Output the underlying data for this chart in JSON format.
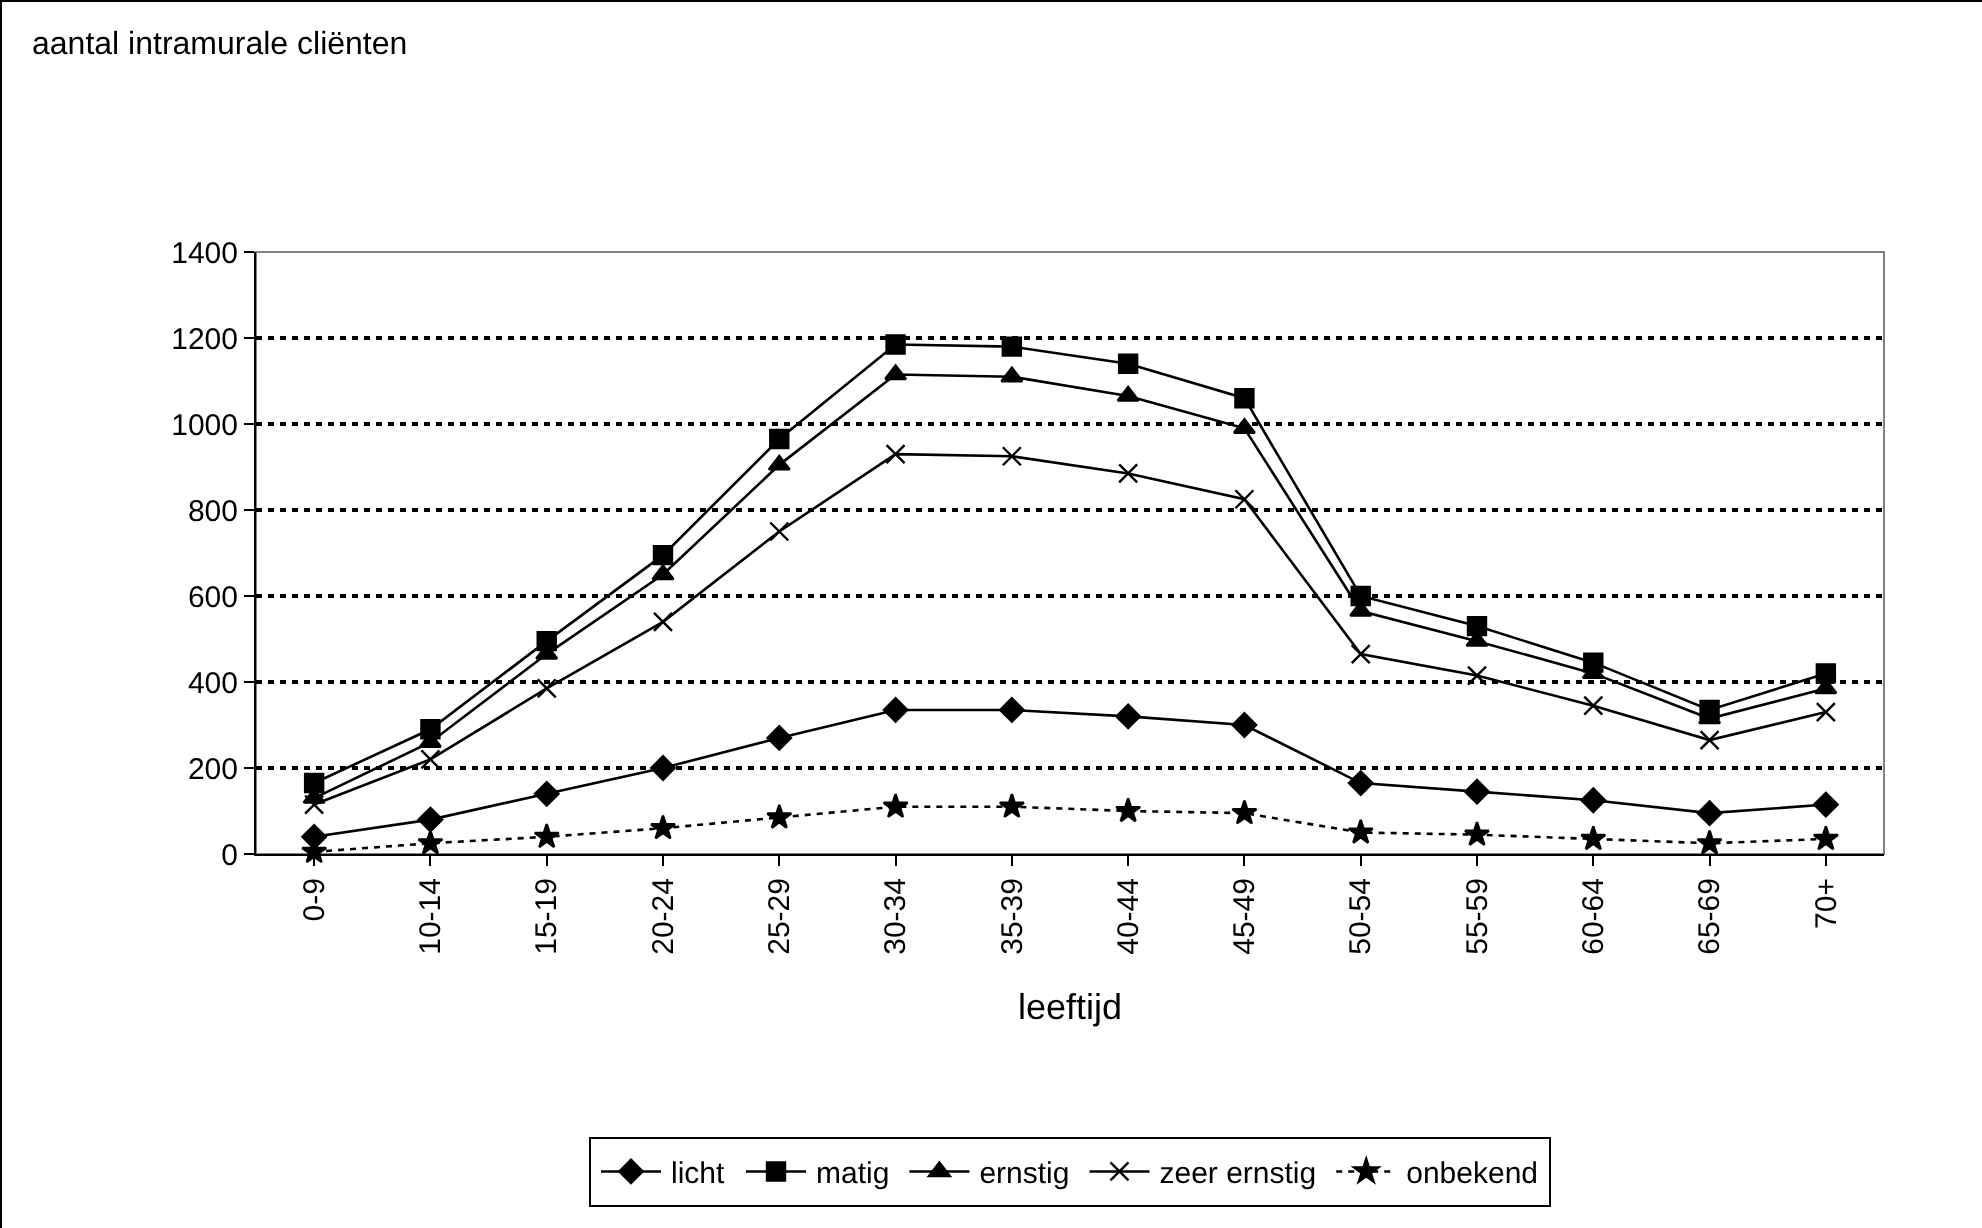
{
  "chart_data": {
    "type": "line",
    "title": "aantal intramurale cliënten",
    "xlabel": "leeftijd",
    "categories": [
      "0-9",
      "10-14",
      "15-19",
      "20-24",
      "25-29",
      "30-34",
      "35-39",
      "40-44",
      "45-49",
      "50-54",
      "55-59",
      "60-64",
      "65-69",
      "70+"
    ],
    "series": [
      {
        "name": "licht",
        "color": "#000000",
        "marker": "diamond",
        "line_style": "solid",
        "values": [
          40,
          80,
          140,
          200,
          270,
          335,
          335,
          320,
          300,
          165,
          145,
          125,
          95,
          115
        ]
      },
      {
        "name": "matig",
        "color": "#000000",
        "marker": "square",
        "line_style": "solid",
        "values": [
          165,
          290,
          495,
          695,
          965,
          1185,
          1180,
          1140,
          1060,
          600,
          530,
          445,
          335,
          420
        ]
      },
      {
        "name": "ernstig",
        "color": "#000000",
        "marker": "triangle",
        "line_style": "solid",
        "values": [
          130,
          260,
          465,
          650,
          905,
          1115,
          1110,
          1065,
          990,
          565,
          495,
          420,
          315,
          385
        ]
      },
      {
        "name": "zeer ernstig",
        "color": "#000000",
        "marker": "cross",
        "line_style": "solid",
        "values": [
          115,
          220,
          385,
          540,
          750,
          930,
          925,
          885,
          825,
          465,
          415,
          345,
          265,
          330
        ]
      },
      {
        "name": "onbekend",
        "color": "#000000",
        "marker": "star",
        "line_style": "dotted",
        "values": [
          5,
          25,
          40,
          60,
          85,
          110,
          110,
          100,
          95,
          50,
          45,
          35,
          25,
          35
        ]
      }
    ],
    "ylim": [
      0,
      1400
    ],
    "yticks": [
      0,
      200,
      400,
      600,
      800,
      1000,
      1200,
      1400
    ],
    "grid": "y",
    "legend": "bottom"
  }
}
